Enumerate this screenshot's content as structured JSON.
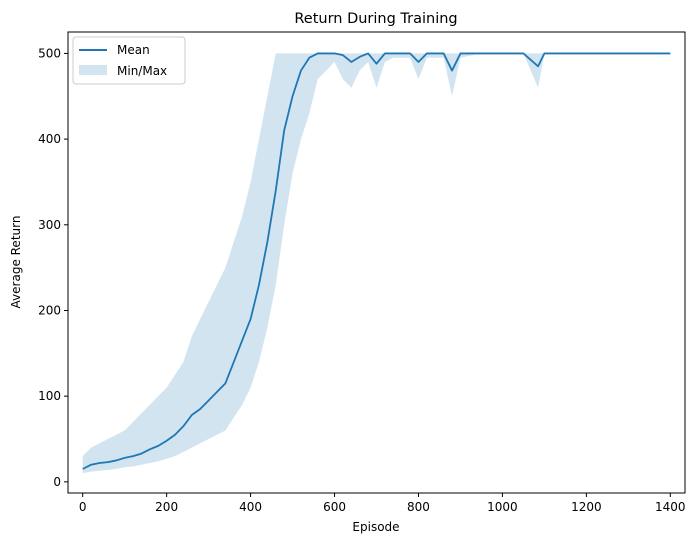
{
  "chart_data": {
    "type": "line",
    "title": "Return During Training",
    "xlabel": "Episode",
    "ylabel": "Average Return",
    "xlim": [
      -35,
      1435
    ],
    "ylim": [
      -13,
      525
    ],
    "xticks": [
      0,
      200,
      400,
      600,
      800,
      1000,
      1200,
      1400
    ],
    "yticks": [
      0,
      100,
      200,
      300,
      400,
      500
    ],
    "grid": false,
    "legend_position": "top-left",
    "colors": {
      "mean": "#1f77b4",
      "band": "#1f77b4"
    },
    "series": [
      {
        "name": "Mean",
        "kind": "line",
        "x": [
          0,
          20,
          40,
          60,
          80,
          100,
          120,
          140,
          160,
          180,
          200,
          220,
          240,
          260,
          280,
          300,
          320,
          340,
          360,
          380,
          400,
          420,
          440,
          460,
          480,
          500,
          520,
          540,
          560,
          580,
          600,
          620,
          640,
          660,
          680,
          700,
          720,
          740,
          760,
          780,
          800,
          820,
          840,
          860,
          880,
          900,
          950,
          1000,
          1050,
          1085,
          1100,
          1150,
          1200,
          1250,
          1300,
          1350,
          1400
        ],
        "y": [
          15,
          20,
          22,
          23,
          25,
          28,
          30,
          33,
          38,
          42,
          48,
          55,
          65,
          78,
          85,
          95,
          105,
          115,
          140,
          165,
          190,
          230,
          280,
          340,
          410,
          450,
          480,
          495,
          500,
          500,
          500,
          498,
          490,
          496,
          500,
          488,
          500,
          500,
          500,
          500,
          490,
          500,
          500,
          500,
          480,
          500,
          500,
          500,
          500,
          485,
          500,
          500,
          500,
          500,
          500,
          500,
          500
        ]
      },
      {
        "name": "Min/Max",
        "kind": "band",
        "x": [
          0,
          20,
          40,
          60,
          80,
          100,
          120,
          140,
          160,
          180,
          200,
          220,
          240,
          260,
          280,
          300,
          320,
          340,
          360,
          380,
          400,
          420,
          440,
          460,
          480,
          500,
          520,
          540,
          560,
          580,
          600,
          620,
          640,
          660,
          680,
          700,
          720,
          740,
          760,
          780,
          800,
          820,
          840,
          860,
          880,
          900,
          950,
          1000,
          1050,
          1085,
          1100,
          1150,
          1200,
          1250,
          1300,
          1350,
          1400
        ],
        "min": [
          10,
          12,
          13,
          14,
          15,
          17,
          18,
          20,
          22,
          24,
          27,
          30,
          35,
          40,
          45,
          50,
          55,
          60,
          75,
          90,
          110,
          140,
          180,
          230,
          300,
          360,
          400,
          430,
          470,
          480,
          490,
          470,
          460,
          480,
          490,
          460,
          490,
          495,
          495,
          495,
          470,
          495,
          495,
          495,
          450,
          495,
          500,
          500,
          500,
          460,
          500,
          500,
          500,
          500,
          500,
          500,
          500
        ],
        "max": [
          30,
          40,
          45,
          50,
          55,
          60,
          70,
          80,
          90,
          100,
          110,
          125,
          140,
          170,
          190,
          210,
          230,
          250,
          280,
          310,
          350,
          400,
          450,
          500,
          500,
          500,
          500,
          500,
          500,
          500,
          500,
          500,
          500,
          500,
          500,
          500,
          500,
          500,
          500,
          500,
          500,
          500,
          500,
          500,
          500,
          500,
          500,
          500,
          500,
          500,
          500,
          500,
          500,
          500,
          500,
          500,
          500
        ]
      }
    ]
  }
}
